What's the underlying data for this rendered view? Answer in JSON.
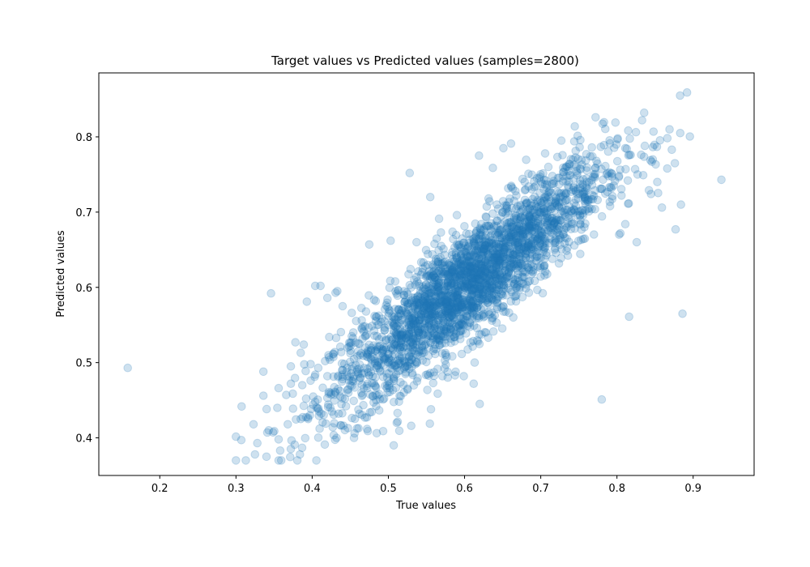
{
  "chart_data": {
    "type": "scatter",
    "title": "Target values vs Predicted values (samples=2800)",
    "xlabel": "True values",
    "ylabel": "Predicted values",
    "xlim": [
      0.12,
      0.98
    ],
    "ylim": [
      0.35,
      0.885
    ],
    "xticks": [
      "0.2",
      "0.3",
      "0.4",
      "0.5",
      "0.6",
      "0.7",
      "0.8",
      "0.9"
    ],
    "yticks": [
      "0.4",
      "0.5",
      "0.6",
      "0.7",
      "0.8"
    ],
    "grid": false,
    "legend": "none",
    "marker_color": "#1f77b4",
    "marker_alpha": 0.22,
    "sample_count": 2800,
    "points": [
      [
        0.158,
        0.493
      ],
      [
        0.937,
        0.743
      ],
      [
        0.892,
        0.859
      ],
      [
        0.886,
        0.565
      ],
      [
        0.816,
        0.561
      ],
      [
        0.78,
        0.451
      ],
      [
        0.528,
        0.752
      ],
      [
        0.346,
        0.592
      ],
      [
        0.307,
        0.397
      ],
      [
        0.325,
        0.378
      ],
      [
        0.34,
        0.375
      ],
      [
        0.323,
        0.418
      ],
      [
        0.328,
        0.393
      ],
      [
        0.343,
        0.41
      ],
      [
        0.356,
        0.398
      ],
      [
        0.358,
        0.383
      ],
      [
        0.368,
        0.418
      ],
      [
        0.377,
        0.391
      ],
      [
        0.384,
        0.378
      ],
      [
        0.385,
        0.425
      ],
      [
        0.392,
        0.452
      ],
      [
        0.397,
        0.43
      ],
      [
        0.372,
        0.472
      ],
      [
        0.366,
        0.457
      ],
      [
        0.356,
        0.466
      ],
      [
        0.336,
        0.488
      ],
      [
        0.336,
        0.456
      ],
      [
        0.372,
        0.495
      ],
      [
        0.385,
        0.513
      ],
      [
        0.389,
        0.524
      ],
      [
        0.393,
        0.581
      ],
      [
        0.378,
        0.527
      ],
      [
        0.411,
        0.602
      ],
      [
        0.404,
        0.602
      ],
      [
        0.42,
        0.586
      ],
      [
        0.475,
        0.657
      ],
      [
        0.503,
        0.662
      ],
      [
        0.537,
        0.66
      ],
      [
        0.555,
        0.72
      ],
      [
        0.59,
        0.696
      ],
      [
        0.619,
        0.775
      ],
      [
        0.651,
        0.785
      ],
      [
        0.661,
        0.791
      ],
      [
        0.727,
        0.795
      ],
      [
        0.772,
        0.826
      ],
      [
        0.798,
        0.819
      ],
      [
        0.833,
        0.822
      ],
      [
        0.848,
        0.807
      ],
      [
        0.869,
        0.81
      ],
      [
        0.883,
        0.805
      ],
      [
        0.876,
        0.765
      ],
      [
        0.847,
        0.77
      ],
      [
        0.859,
        0.706
      ],
      [
        0.877,
        0.677
      ],
      [
        0.884,
        0.71
      ],
      [
        0.826,
        0.66
      ],
      [
        0.811,
        0.684
      ],
      [
        0.793,
        0.751
      ],
      [
        0.806,
        0.722
      ],
      [
        0.791,
        0.708
      ],
      [
        0.79,
        0.733
      ],
      [
        0.77,
        0.75
      ],
      [
        0.76,
        0.777
      ],
      [
        0.744,
        0.794
      ],
      [
        0.78,
        0.731
      ],
      [
        0.767,
        0.704
      ],
      [
        0.749,
        0.701
      ],
      [
        0.736,
        0.685
      ],
      [
        0.722,
        0.673
      ],
      [
        0.703,
        0.654
      ],
      [
        0.688,
        0.631
      ],
      [
        0.672,
        0.608
      ],
      [
        0.65,
        0.595
      ],
      [
        0.632,
        0.585
      ],
      [
        0.612,
        0.569
      ],
      [
        0.593,
        0.549
      ],
      [
        0.567,
        0.53
      ],
      [
        0.545,
        0.503
      ],
      [
        0.523,
        0.487
      ],
      [
        0.502,
        0.466
      ],
      [
        0.484,
        0.45
      ],
      [
        0.462,
        0.432
      ],
      [
        0.447,
        0.413
      ],
      [
        0.432,
        0.4
      ],
      [
        0.418,
        0.419
      ],
      [
        0.409,
        0.435
      ],
      [
        0.424,
        0.46
      ],
      [
        0.44,
        0.478
      ],
      [
        0.457,
        0.497
      ],
      [
        0.471,
        0.513
      ],
      [
        0.488,
        0.531
      ],
      [
        0.507,
        0.549
      ],
      [
        0.524,
        0.566
      ],
      [
        0.541,
        0.579
      ],
      [
        0.56,
        0.595
      ],
      [
        0.579,
        0.614
      ],
      [
        0.598,
        0.629
      ],
      [
        0.617,
        0.646
      ],
      [
        0.637,
        0.663
      ],
      [
        0.655,
        0.677
      ],
      [
        0.674,
        0.694
      ],
      [
        0.692,
        0.711
      ],
      [
        0.711,
        0.727
      ],
      [
        0.729,
        0.741
      ],
      [
        0.747,
        0.76
      ],
      [
        0.765,
        0.774
      ],
      [
        0.783,
        0.789
      ],
      [
        0.801,
        0.798
      ],
      [
        0.818,
        0.776
      ],
      [
        0.827,
        0.75
      ],
      [
        0.842,
        0.729
      ],
      [
        0.853,
        0.74
      ],
      [
        0.866,
        0.758
      ],
      [
        0.872,
        0.783
      ],
      [
        0.62,
        0.445
      ],
      [
        0.612,
        0.472
      ],
      [
        0.599,
        0.482
      ],
      [
        0.578,
        0.48
      ],
      [
        0.556,
        0.438
      ],
      [
        0.53,
        0.416
      ],
      [
        0.507,
        0.39
      ],
      [
        0.511,
        0.42
      ],
      [
        0.512,
        0.433
      ],
      [
        0.493,
        0.451
      ],
      [
        0.473,
        0.409
      ],
      [
        0.455,
        0.4
      ],
      [
        0.484,
        0.493
      ],
      [
        0.465,
        0.546
      ],
      [
        0.452,
        0.566
      ],
      [
        0.44,
        0.575
      ],
      [
        0.433,
        0.595
      ],
      [
        0.428,
        0.511
      ],
      [
        0.417,
        0.502
      ],
      [
        0.404,
        0.484
      ],
      [
        0.398,
        0.498
      ],
      [
        0.387,
        0.47
      ],
      [
        0.404,
        0.448
      ],
      [
        0.421,
        0.441
      ],
      [
        0.437,
        0.455
      ],
      [
        0.45,
        0.47
      ],
      [
        0.468,
        0.486
      ],
      [
        0.482,
        0.505
      ],
      [
        0.497,
        0.52
      ],
      [
        0.511,
        0.536
      ],
      [
        0.527,
        0.55
      ],
      [
        0.544,
        0.566
      ],
      [
        0.558,
        0.581
      ],
      [
        0.574,
        0.596
      ],
      [
        0.589,
        0.61
      ],
      [
        0.603,
        0.625
      ],
      [
        0.619,
        0.638
      ],
      [
        0.634,
        0.652
      ],
      [
        0.649,
        0.666
      ],
      [
        0.664,
        0.68
      ],
      [
        0.679,
        0.694
      ],
      [
        0.694,
        0.708
      ],
      [
        0.709,
        0.722
      ],
      [
        0.724,
        0.737
      ],
      [
        0.739,
        0.749
      ],
      [
        0.754,
        0.763
      ],
      [
        0.69,
        0.62
      ],
      [
        0.676,
        0.587
      ],
      [
        0.664,
        0.56
      ],
      [
        0.642,
        0.553
      ],
      [
        0.628,
        0.54
      ],
      [
        0.651,
        0.575
      ],
      [
        0.705,
        0.638
      ],
      [
        0.719,
        0.652
      ],
      [
        0.734,
        0.665
      ],
      [
        0.752,
        0.689
      ],
      [
        0.744,
        0.712
      ],
      [
        0.733,
        0.725
      ],
      [
        0.717,
        0.738
      ],
      [
        0.699,
        0.747
      ],
      [
        0.684,
        0.734
      ],
      [
        0.668,
        0.722
      ],
      [
        0.653,
        0.709
      ],
      [
        0.637,
        0.698
      ],
      [
        0.622,
        0.684
      ],
      [
        0.606,
        0.671
      ],
      [
        0.59,
        0.657
      ],
      [
        0.574,
        0.643
      ],
      [
        0.558,
        0.63
      ],
      [
        0.543,
        0.617
      ],
      [
        0.528,
        0.603
      ],
      [
        0.512,
        0.589
      ],
      [
        0.497,
        0.576
      ],
      [
        0.482,
        0.562
      ],
      [
        0.467,
        0.548
      ],
      [
        0.452,
        0.535
      ],
      [
        0.437,
        0.521
      ],
      [
        0.422,
        0.507
      ],
      [
        0.408,
        0.493
      ],
      [
        0.398,
        0.476
      ],
      [
        0.44,
        0.49
      ],
      [
        0.455,
        0.505
      ],
      [
        0.47,
        0.52
      ],
      [
        0.485,
        0.535
      ],
      [
        0.5,
        0.55
      ],
      [
        0.515,
        0.565
      ],
      [
        0.53,
        0.58
      ],
      [
        0.545,
        0.595
      ],
      [
        0.56,
        0.61
      ],
      [
        0.575,
        0.625
      ],
      [
        0.59,
        0.64
      ],
      [
        0.605,
        0.655
      ],
      [
        0.62,
        0.67
      ],
      [
        0.635,
        0.685
      ],
      [
        0.65,
        0.7
      ],
      [
        0.665,
        0.715
      ],
      [
        0.68,
        0.73
      ],
      [
        0.695,
        0.745
      ],
      [
        0.71,
        0.76
      ],
      [
        0.5,
        0.5
      ],
      [
        0.52,
        0.52
      ],
      [
        0.54,
        0.54
      ],
      [
        0.56,
        0.56
      ],
      [
        0.58,
        0.58
      ],
      [
        0.6,
        0.6
      ],
      [
        0.62,
        0.62
      ],
      [
        0.64,
        0.64
      ],
      [
        0.66,
        0.66
      ],
      [
        0.68,
        0.68
      ],
      [
        0.7,
        0.7
      ],
      [
        0.72,
        0.72
      ],
      [
        0.55,
        0.57
      ],
      [
        0.57,
        0.575
      ],
      [
        0.59,
        0.59
      ],
      [
        0.61,
        0.605
      ],
      [
        0.63,
        0.625
      ],
      [
        0.65,
        0.64
      ],
      [
        0.67,
        0.66
      ],
      [
        0.56,
        0.545
      ],
      [
        0.58,
        0.56
      ],
      [
        0.6,
        0.58
      ],
      [
        0.62,
        0.595
      ],
      [
        0.64,
        0.615
      ],
      [
        0.66,
        0.63
      ],
      [
        0.68,
        0.65
      ],
      [
        0.7,
        0.675
      ],
      [
        0.545,
        0.585
      ],
      [
        0.565,
        0.6
      ],
      [
        0.585,
        0.615
      ],
      [
        0.605,
        0.635
      ],
      [
        0.625,
        0.65
      ],
      [
        0.645,
        0.67
      ],
      [
        0.665,
        0.69
      ],
      [
        0.685,
        0.705
      ],
      [
        0.535,
        0.555
      ],
      [
        0.555,
        0.575
      ],
      [
        0.575,
        0.59
      ],
      [
        0.595,
        0.605
      ],
      [
        0.615,
        0.625
      ],
      [
        0.635,
        0.64
      ],
      [
        0.655,
        0.655
      ],
      [
        0.675,
        0.675
      ]
    ]
  }
}
